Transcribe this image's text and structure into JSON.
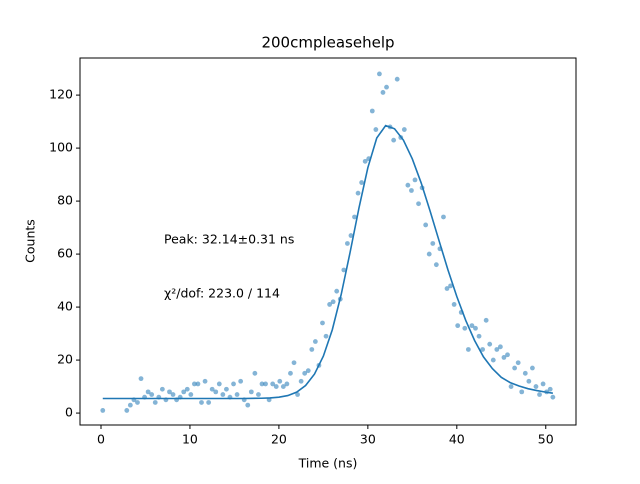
{
  "chart_data": {
    "type": "scatter",
    "title": "200cmpleasehelp",
    "xlabel": "Time (ns)",
    "ylabel": "Counts",
    "annotations": [
      "Peak: 32.14±0.31 ns",
      "χ²/dof: 223.0 / 114"
    ],
    "xlim": [
      -2.36,
      53.4
    ],
    "ylim": [
      -4.5,
      134
    ],
    "xticks": [
      0,
      10,
      20,
      30,
      40,
      50
    ],
    "yticks": [
      0,
      20,
      40,
      60,
      80,
      100,
      120
    ],
    "points": {
      "color": "#1f77b4",
      "x": [
        0.2,
        2.9,
        3.3,
        3.7,
        4.1,
        4.5,
        4.9,
        5.3,
        5.7,
        6.1,
        6.5,
        6.9,
        7.3,
        7.7,
        8.1,
        8.5,
        8.9,
        9.3,
        9.7,
        10.1,
        10.5,
        10.9,
        11.3,
        11.7,
        12.1,
        12.5,
        12.9,
        13.3,
        13.7,
        14.1,
        14.5,
        14.9,
        15.3,
        15.7,
        16.1,
        16.5,
        16.9,
        17.3,
        17.7,
        18.1,
        18.5,
        18.9,
        19.3,
        19.7,
        20.1,
        20.5,
        20.9,
        21.3,
        21.7,
        22.1,
        22.5,
        22.9,
        23.3,
        23.7,
        24.1,
        24.5,
        24.9,
        25.3,
        25.7,
        26.1,
        26.5,
        26.9,
        27.3,
        27.7,
        28.1,
        28.5,
        28.9,
        29.3,
        29.7,
        30.1,
        30.5,
        30.9,
        31.3,
        31.7,
        32.1,
        32.5,
        32.9,
        33.3,
        33.7,
        34.1,
        34.5,
        34.9,
        35.3,
        35.7,
        36.1,
        36.5,
        36.9,
        37.3,
        37.7,
        38.1,
        38.5,
        38.9,
        39.3,
        39.7,
        40.1,
        40.5,
        40.9,
        41.3,
        41.7,
        42.1,
        42.5,
        42.9,
        43.3,
        43.7,
        44.1,
        44.5,
        44.9,
        45.3,
        45.7,
        46.1,
        46.5,
        46.9,
        47.3,
        47.7,
        48.1,
        48.5,
        48.9,
        49.3,
        49.7,
        50.1,
        50.5,
        50.8
      ],
      "values": [
        1,
        1,
        3,
        5,
        4,
        13,
        6,
        8,
        7,
        4,
        6,
        9,
        5,
        8,
        7,
        5,
        6,
        8,
        9,
        7,
        11,
        11,
        4,
        12,
        4,
        9,
        8,
        11,
        7,
        9,
        6,
        11,
        7,
        12,
        5,
        3,
        8,
        15,
        7,
        11,
        11,
        5,
        11,
        10,
        12,
        10,
        11,
        15,
        19,
        7,
        12,
        15,
        16,
        24,
        27,
        18,
        34,
        29,
        41,
        42,
        46,
        43,
        54,
        64,
        67,
        74,
        83,
        87,
        95,
        96,
        114,
        107,
        128,
        121,
        123,
        108,
        103,
        126,
        104,
        107,
        86,
        84,
        88,
        79,
        85,
        71,
        60,
        64,
        56,
        62,
        74,
        47,
        48,
        41,
        33,
        38,
        32,
        24,
        33,
        32,
        29,
        24,
        35,
        26,
        20,
        24,
        25,
        21,
        22,
        10,
        17,
        19,
        8,
        15,
        12,
        17,
        10,
        7,
        11,
        8,
        9,
        6
      ]
    },
    "fit": {
      "color": "#1f77b4",
      "x": [
        0.2,
        2,
        4,
        6,
        8,
        10,
        12,
        14,
        16,
        18,
        19,
        20,
        21,
        22,
        23,
        24,
        25,
        26,
        27,
        28,
        29,
        30,
        31,
        32,
        33,
        34,
        35,
        36,
        37,
        38,
        39,
        40,
        41,
        42,
        43,
        44,
        45,
        46,
        47,
        48,
        49,
        50,
        50.8
      ],
      "values": [
        5.5,
        5.5,
        5.5,
        5.5,
        5.5,
        5.5,
        5.5,
        5.5,
        5.5,
        5.6,
        5.7,
        6.0,
        6.6,
        7.9,
        10.4,
        14.7,
        21.5,
        31.4,
        44.7,
        60.6,
        77.4,
        92.6,
        103.8,
        108.5,
        107.3,
        103.0,
        95.9,
        86.8,
        76.2,
        65.1,
        54.1,
        44.0,
        35.0,
        27.4,
        21.2,
        16.8,
        13.5,
        11.5,
        10.2,
        9.2,
        8.5,
        7.9,
        7.5
      ]
    }
  }
}
